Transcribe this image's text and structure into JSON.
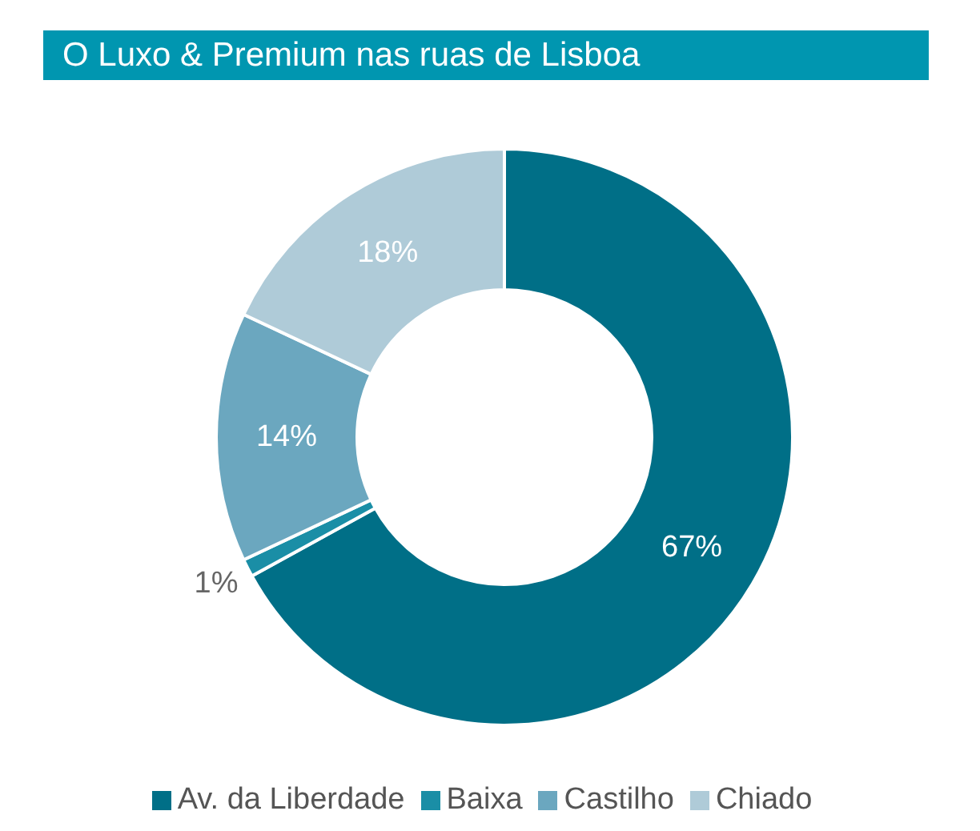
{
  "chart_data": {
    "type": "donut",
    "title": "O Luxo & Premium nas ruas de Lisboa",
    "categories": [
      "Av. da Liberdade",
      "Baixa",
      "Castilho",
      "Chiado"
    ],
    "values": [
      67,
      1,
      14,
      18
    ],
    "colors": [
      "#006f87",
      "#1a8ea6",
      "#6ba7bf",
      "#afcbd8"
    ],
    "value_labels": [
      "67%",
      "1%",
      "14%",
      "18%"
    ],
    "legend": "bottom"
  }
}
